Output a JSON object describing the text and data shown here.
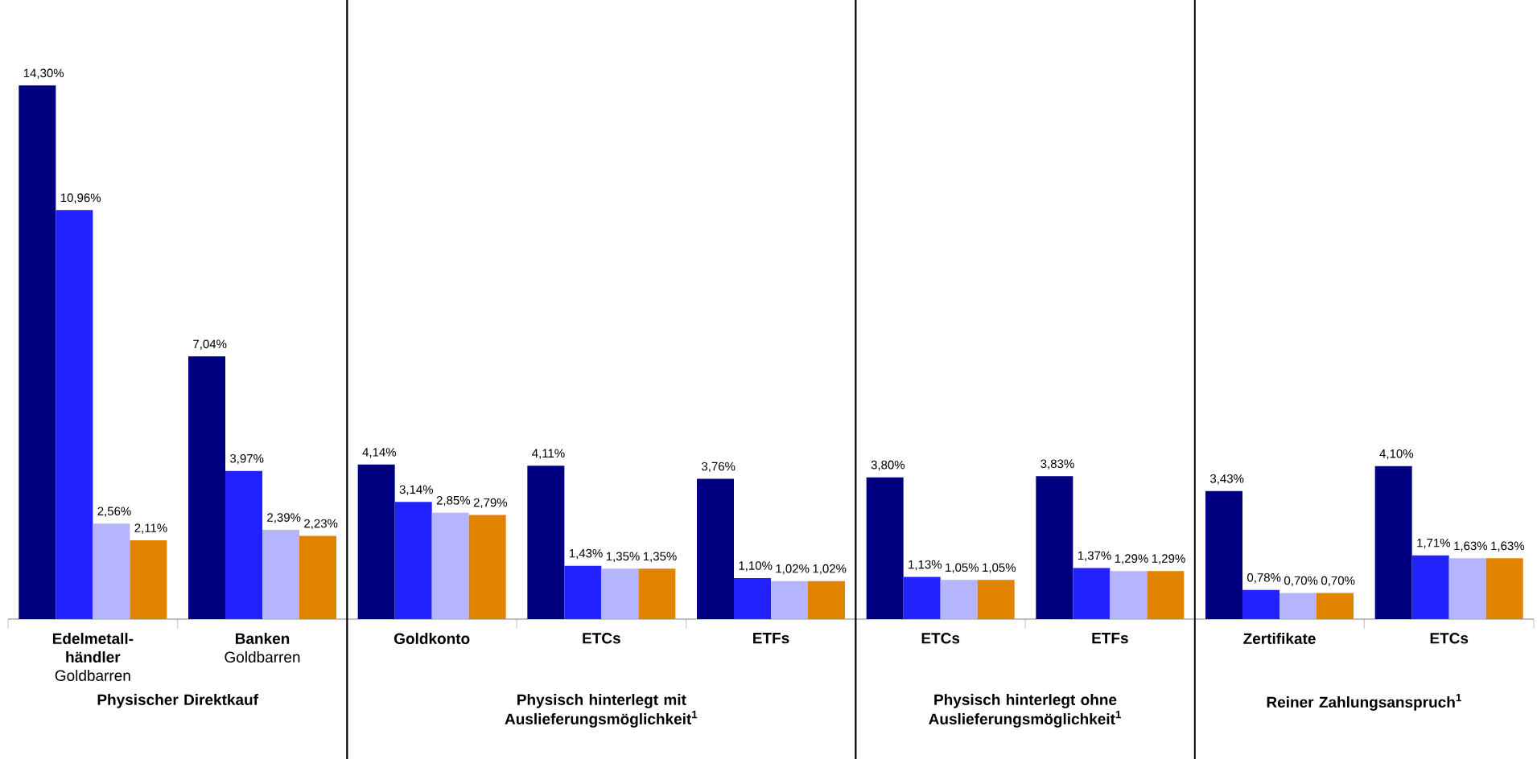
{
  "chart_data": {
    "type": "bar",
    "categories": [
      "**Edelmetall-händler** Goldbarren",
      "**Banken** Goldbarren",
      "Goldkonto",
      "ETCs",
      "ETFs",
      "ETCs",
      "ETFs",
      "Zertifikate",
      "ETCs"
    ],
    "series": [
      {
        "color": "#000080",
        "values": [
          14.3,
          7.04,
          4.14,
          4.11,
          3.76,
          3.8,
          3.83,
          3.43,
          4.1
        ],
        "value_labels": [
          "14,30%",
          "7,04%",
          "4,14%",
          "4,11%",
          "3,76%",
          "3,80%",
          "3,83%",
          "3,43%",
          "4,10%"
        ]
      },
      {
        "color": "#2222ff",
        "values": [
          10.96,
          3.97,
          3.14,
          1.43,
          1.1,
          1.13,
          1.37,
          0.78,
          1.71
        ],
        "value_labels": [
          "10,96%",
          "3,97%",
          "3,14%",
          "1,43%",
          "1,10%",
          "1,13%",
          "1,37%",
          "0,78%",
          "1,71%"
        ]
      },
      {
        "color": "#b4b4ff",
        "values": [
          2.56,
          2.39,
          2.85,
          1.35,
          1.02,
          1.05,
          1.29,
          0.7,
          1.63
        ],
        "value_labels": [
          "2,56%",
          "2,39%",
          "2,85%",
          "1,35%",
          "1,02%",
          "1,05%",
          "1,29%",
          "0,70%",
          "1,63%"
        ]
      },
      {
        "color": "#e08400",
        "values": [
          2.11,
          2.23,
          2.79,
          1.35,
          1.02,
          1.05,
          1.29,
          0.7,
          1.63
        ],
        "value_labels": [
          "2,11%",
          "2,23%",
          "2,79%",
          "1,35%",
          "1,02%",
          "1,05%",
          "1,29%",
          "0,70%",
          "1,63%"
        ]
      }
    ],
    "annotations": [
      "Physischer Direktkauf",
      "Physisch hinterlegt mit Auslieferungsmöglichkeit$^{1}$",
      "Physisch hinterlegt ohne Auslieferungsmöglichkeit$^{1}$",
      "Reiner Zahlungsanspruch$^{1}$"
    ]
  }
}
